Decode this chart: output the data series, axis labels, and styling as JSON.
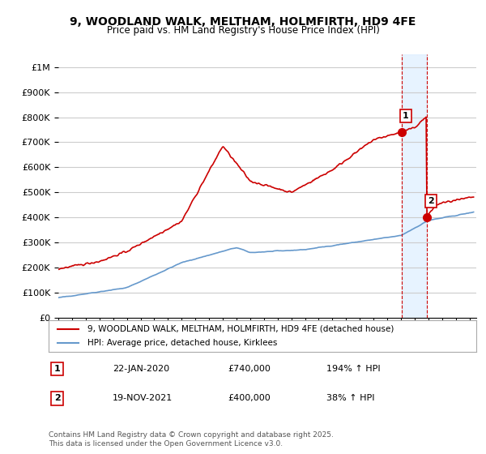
{
  "title": "9, WOODLAND WALK, MELTHAM, HOLMFIRTH, HD9 4FE",
  "subtitle": "Price paid vs. HM Land Registry's House Price Index (HPI)",
  "legend_line1": "9, WOODLAND WALK, MELTHAM, HOLMFIRTH, HD9 4FE (detached house)",
  "legend_line2": "HPI: Average price, detached house, Kirklees",
  "annotation1_label": "1",
  "annotation1_date": "22-JAN-2020",
  "annotation1_price": "£740,000",
  "annotation1_hpi": "194% ↑ HPI",
  "annotation2_label": "2",
  "annotation2_date": "19-NOV-2021",
  "annotation2_price": "£400,000",
  "annotation2_hpi": "38% ↑ HPI",
  "footnote": "Contains HM Land Registry data © Crown copyright and database right 2025.\nThis data is licensed under the Open Government Licence v3.0.",
  "ylim": [
    0,
    1050000
  ],
  "xlim_start": 1995.0,
  "xlim_end": 2025.5,
  "background_color": "#ffffff",
  "grid_color": "#cccccc",
  "red_line_color": "#cc0000",
  "blue_line_color": "#6699cc",
  "shade_color": "#ddeeff",
  "vline_color": "#cc0000",
  "sale1_x": 2020.06,
  "sale1_y": 740000,
  "sale2_x": 2021.89,
  "sale2_y": 400000
}
